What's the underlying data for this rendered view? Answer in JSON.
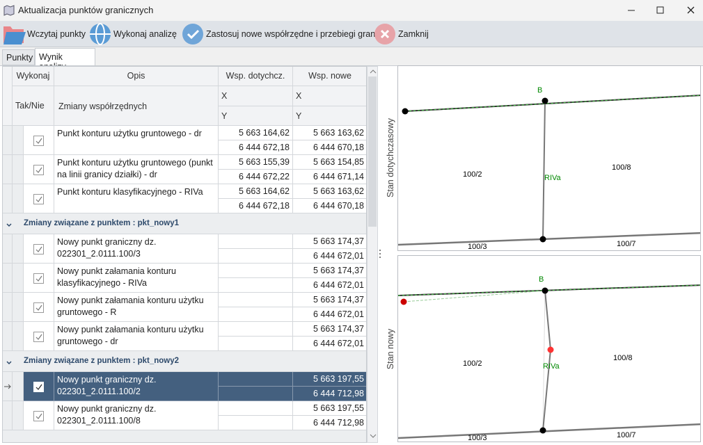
{
  "window": {
    "title": "Aktualizacja punktów granicznych"
  },
  "toolbar": [
    "Wczytaj punkty",
    "Wykonaj analizę",
    "Zastosuj nowe współrzędne i przebiegi granic",
    "Zamknij"
  ],
  "tabs": [
    "Punkty",
    "Wynik analizy"
  ],
  "table": {
    "headers": {
      "wykonaj": "Wykonaj",
      "opis": "Opis",
      "old": "Wsp. dotychcz.",
      "new": "Wsp. nowe",
      "tak_nie": "Tak/Nie",
      "zmiany": "Zmiany współrzędnych",
      "old_x": "X",
      "new_x": "X",
      "old_y": "Y",
      "new_y": "Y"
    },
    "rows": [
      {
        "opis": "Punkt konturu użytku gruntowego - dr",
        "old_x": "5 663 164,62",
        "old_y": "6 444 672,18",
        "new_x": "5 663 163,62",
        "new_y": "6 444 670,18"
      },
      {
        "opis": "Punkt konturu użytku gruntowego (punkt na linii granicy działki) - dr",
        "old_x": "5 663 155,39",
        "old_y": "6 444 672,22",
        "new_x": "5 663 154,85",
        "new_y": "6 444 671,14"
      },
      {
        "opis": "Punkt konturu klasyfikacyjnego - RIVa",
        "old_x": "5 663 164,62",
        "old_y": "6 444 672,18",
        "new_x": "5 663 163,62",
        "new_y": "6 444 670,18"
      }
    ],
    "groups": [
      {
        "title": "Zmiany związane z punktem : pkt_nowy1",
        "rows": [
          {
            "opis": "Nowy punkt graniczny dz. 022301_2.0111.100/3",
            "new_x": "5 663 174,37",
            "new_y": "6 444 672,01"
          },
          {
            "opis": "Nowy punkt załamania konturu klasyfikacyjnego - RIVa",
            "new_x": "5 663 174,37",
            "new_y": "6 444 672,01"
          },
          {
            "opis": "Nowy punkt załamania konturu użytku gruntowego - R",
            "new_x": "5 663 174,37",
            "new_y": "6 444 672,01"
          },
          {
            "opis": "Nowy punkt załamania konturu użytku gruntowego - dr",
            "new_x": "5 663 174,37",
            "new_y": "6 444 672,01"
          }
        ]
      },
      {
        "title": "Zmiany związane z punktem : pkt_nowy2",
        "rows": [
          {
            "opis": "Nowy punkt graniczny dz. 022301_2.0111.100/2",
            "new_x": "5 663 197,55",
            "new_y": "6 444 712,98"
          },
          {
            "opis": "Nowy punkt graniczny dz. 022301_2.0111.100/8",
            "new_x": "5 663 197,55",
            "new_y": "6 444 712,98"
          }
        ]
      }
    ]
  },
  "maps": [
    {
      "caption": "Stan dotychczasowy",
      "labels": [
        "B",
        "100/2",
        "RIVa",
        "100/8",
        "100/3",
        "100/7"
      ]
    },
    {
      "caption": "Stan nowy",
      "labels": [
        "B",
        "100/2",
        "RIVa",
        "100/8",
        "100/3",
        "100/7"
      ]
    }
  ]
}
